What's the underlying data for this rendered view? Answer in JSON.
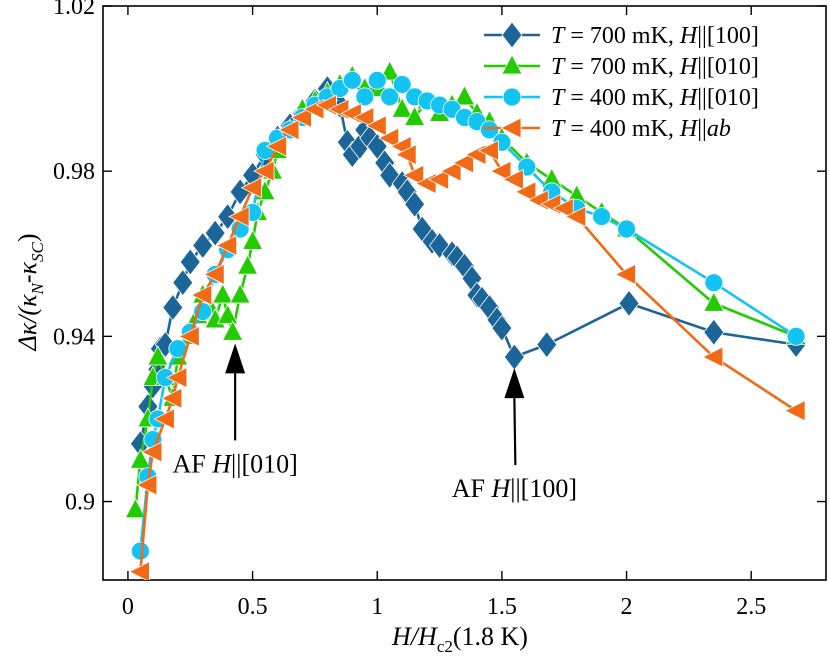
{
  "chart_data": {
    "type": "line",
    "xlabel": {
      "main": "H/H",
      "sub": "c2",
      "suffix": "(1.8 K)"
    },
    "ylabel": {
      "prefix": "Δκ/(κ",
      "sub1": "N",
      "mid": "-κ",
      "sub2": "SC",
      "suffix": ")"
    },
    "xlim": [
      -0.1,
      2.8
    ],
    "ylim": [
      0.881,
      1.02
    ],
    "xticks": [
      {
        "value": 0,
        "label": "0"
      },
      {
        "value": 0.5,
        "label": "0.5"
      },
      {
        "value": 1,
        "label": "1"
      },
      {
        "value": 1.5,
        "label": "1.5"
      },
      {
        "value": 2,
        "label": "2"
      },
      {
        "value": 2.5,
        "label": "2.5"
      }
    ],
    "yticks": [
      {
        "value": 0.9,
        "label": "0.9"
      },
      {
        "value": 0.94,
        "label": "0.94"
      },
      {
        "value": 0.98,
        "label": "0.98"
      },
      {
        "value": 1.02,
        "label": "1.02"
      }
    ],
    "legend_position": "top-right",
    "series": [
      {
        "name": "T = 700 mK, H||[100]",
        "legend": {
          "t": "T",
          "eq": " = 700 mK, ",
          "h": "H",
          "dir": "||[100]",
          "dir_italic": false
        },
        "color": "#1b6598",
        "marker": "diamond",
        "x": [
          0.05,
          0.08,
          0.1,
          0.12,
          0.13,
          0.15,
          0.18,
          0.22,
          0.25,
          0.3,
          0.35,
          0.4,
          0.45,
          0.5,
          0.55,
          0.6,
          0.65,
          0.7,
          0.75,
          0.8,
          0.85,
          0.88,
          0.9,
          0.93,
          0.95,
          0.97,
          1.0,
          1.03,
          1.05,
          1.1,
          1.12,
          1.15,
          1.18,
          1.22,
          1.25,
          1.3,
          1.32,
          1.35,
          1.38,
          1.4,
          1.42,
          1.45,
          1.48,
          1.5,
          1.55,
          1.68,
          2.01,
          2.35,
          2.68
        ],
        "y": [
          0.914,
          0.923,
          0.928,
          0.932,
          0.937,
          0.938,
          0.947,
          0.953,
          0.958,
          0.962,
          0.965,
          0.969,
          0.975,
          0.979,
          0.984,
          0.988,
          0.991,
          0.994,
          0.997,
          1.0,
          0.996,
          0.987,
          0.984,
          0.986,
          0.99,
          0.988,
          0.986,
          0.982,
          0.979,
          0.977,
          0.975,
          0.972,
          0.966,
          0.963,
          0.962,
          0.96,
          0.959,
          0.957,
          0.954,
          0.95,
          0.949,
          0.947,
          0.944,
          0.942,
          0.935,
          0.938,
          0.948,
          0.941,
          0.938
        ]
      },
      {
        "name": "T = 700 mK, H||[010]",
        "legend": {
          "t": "T",
          "eq": " = 700 mK, ",
          "h": "H",
          "dir": "||[010]",
          "dir_italic": false
        },
        "color": "#22cc00",
        "marker": "triangle-up",
        "x": [
          0.03,
          0.05,
          0.08,
          0.1,
          0.12,
          0.15,
          0.18,
          0.2,
          0.25,
          0.28,
          0.3,
          0.33,
          0.35,
          0.38,
          0.4,
          0.42,
          0.45,
          0.48,
          0.5,
          0.52,
          0.55,
          0.58,
          0.6,
          0.65,
          0.7,
          0.75,
          0.8,
          0.85,
          0.9,
          0.95,
          1.0,
          1.05,
          1.1,
          1.15,
          1.2,
          1.25,
          1.3,
          1.35,
          1.4,
          1.45,
          1.5,
          1.6,
          1.7,
          1.8,
          1.9,
          2.0,
          2.35,
          2.68
        ],
        "y": [
          0.898,
          0.91,
          0.92,
          0.93,
          0.935,
          0.93,
          0.925,
          0.935,
          0.94,
          0.945,
          0.95,
          0.947,
          0.944,
          0.95,
          0.945,
          0.941,
          0.95,
          0.957,
          0.963,
          0.97,
          0.975,
          0.98,
          0.985,
          0.99,
          0.995,
          0.997,
          0.999,
          1.001,
          1.003,
          1.0,
          1.0,
          1.004,
          0.995,
          0.993,
          0.997,
          0.994,
          0.996,
          0.998,
          0.994,
          0.992,
          0.988,
          0.982,
          0.978,
          0.974,
          0.97,
          0.966,
          0.948,
          0.94
        ]
      },
      {
        "name": "T = 400 mK, H||[010]",
        "legend": {
          "t": "T",
          "eq": " = 400 mK, ",
          "h": "H",
          "dir": "||[010]",
          "dir_italic": false
        },
        "color": "#13c3f1",
        "marker": "circle",
        "x": [
          0.05,
          0.08,
          0.1,
          0.12,
          0.15,
          0.2,
          0.25,
          0.3,
          0.35,
          0.4,
          0.45,
          0.5,
          0.55,
          0.6,
          0.65,
          0.7,
          0.75,
          0.8,
          0.85,
          0.9,
          0.95,
          1.0,
          1.05,
          1.1,
          1.15,
          1.2,
          1.25,
          1.3,
          1.35,
          1.4,
          1.45,
          1.5,
          1.6,
          1.7,
          1.8,
          1.9,
          2.0,
          2.35,
          2.68
        ],
        "y": [
          0.888,
          0.906,
          0.915,
          0.92,
          0.93,
          0.937,
          0.941,
          0.946,
          0.955,
          0.961,
          0.966,
          0.97,
          0.985,
          0.988,
          0.99,
          0.993,
          0.996,
          0.998,
          1.0,
          1.002,
          0.998,
          1.002,
          0.998,
          1.001,
          0.998,
          0.997,
          0.996,
          0.995,
          0.993,
          0.992,
          0.99,
          0.987,
          0.981,
          0.975,
          0.971,
          0.969,
          0.966,
          0.953,
          0.94
        ]
      },
      {
        "name": "T = 400 mK, H||ab",
        "legend": {
          "t": "T",
          "eq": " = 400 mK, ",
          "h": "H",
          "dir": "||ab",
          "dir_italic": true
        },
        "color": "#f26a16",
        "marker": "triangle-left",
        "x": [
          0.05,
          0.08,
          0.1,
          0.15,
          0.18,
          0.2,
          0.25,
          0.3,
          0.35,
          0.4,
          0.45,
          0.5,
          0.55,
          0.6,
          0.65,
          0.7,
          0.75,
          0.8,
          0.85,
          0.9,
          0.95,
          1.0,
          1.05,
          1.1,
          1.12,
          1.15,
          1.2,
          1.25,
          1.3,
          1.35,
          1.4,
          1.45,
          1.5,
          1.55,
          1.6,
          1.65,
          1.7,
          1.75,
          1.8,
          2.0,
          2.35,
          2.68
        ],
        "y": [
          0.883,
          0.904,
          0.912,
          0.92,
          0.925,
          0.93,
          0.94,
          0.95,
          0.955,
          0.962,
          0.969,
          0.976,
          0.98,
          0.986,
          0.99,
          0.993,
          0.995,
          0.996,
          0.995,
          0.994,
          0.993,
          0.991,
          0.988,
          0.986,
          0.984,
          0.979,
          0.977,
          0.978,
          0.98,
          0.982,
          0.984,
          0.985,
          0.98,
          0.978,
          0.975,
          0.973,
          0.972,
          0.971,
          0.969,
          0.955,
          0.935,
          0.922
        ]
      }
    ],
    "annotations": [
      {
        "prefix": "AF ",
        "h": "H",
        "dir": "||[010]",
        "x": 0.43,
        "y": 0.9383,
        "label_position": "below"
      },
      {
        "prefix": "AF ",
        "h": "H",
        "dir": "||[100]",
        "x": 1.55,
        "y": 0.9323,
        "label_position": "below"
      }
    ]
  }
}
